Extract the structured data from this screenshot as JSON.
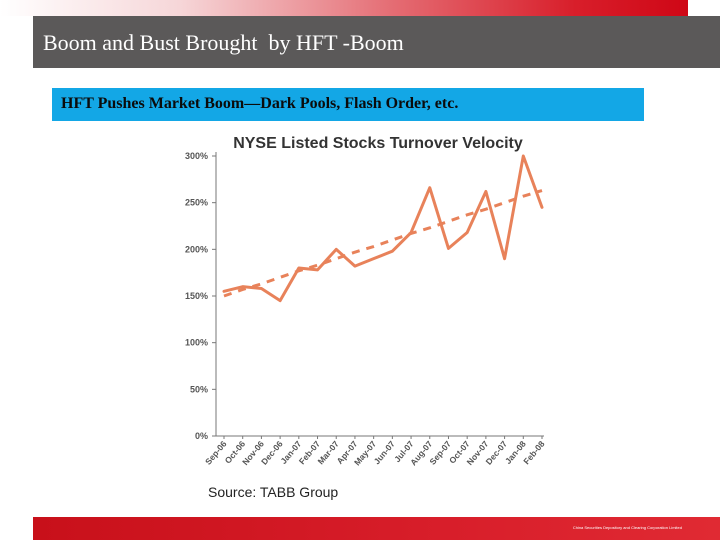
{
  "slide": {
    "title": "Boom and Bust Brought  by HFT -Boom",
    "subtitle": "HFT Pushes Market Boom—Dark Pools, Flash Order, etc.",
    "source": "Source: TABB Group",
    "footer": "China Securities Depository and Clearing Corporation Limited"
  },
  "colors": {
    "title_bar": "#5b5959",
    "subtitle_box": "#13a7e6",
    "series_line": "#e8825a",
    "trend_line": "#e8825a",
    "footer_bar": "#d81e2a"
  },
  "chart_data": {
    "type": "line",
    "title": "NYSE Listed Stocks Turnover Velocity",
    "xlabel": "",
    "ylabel": "",
    "categories": [
      "Sep-06",
      "Oct-06",
      "Nov-06",
      "Dec-06",
      "Jan-07",
      "Feb-07",
      "Mar-07",
      "Apr-07",
      "May-07",
      "Jun-07",
      "Jul-07",
      "Aug-07",
      "Sep-07",
      "Oct-07",
      "Nov-07",
      "Dec-07",
      "Jan-08",
      "Feb-08"
    ],
    "series": [
      {
        "values": [
          155,
          160,
          158,
          145,
          180,
          178,
          200,
          182,
          190,
          198,
          218,
          266,
          201,
          218,
          262,
          190,
          300,
          245
        ]
      },
      {
        "style": "dashed-trend",
        "values": [
          150,
          157,
          163,
          170,
          177,
          183,
          190,
          197,
          203,
          210,
          217,
          223,
          230,
          237,
          243,
          250,
          257,
          263
        ]
      }
    ],
    "ylim": [
      0,
      300
    ],
    "yticks": [
      "0%",
      "50%",
      "100%",
      "150%",
      "200%",
      "250%",
      "300%"
    ],
    "grid": false,
    "legend": "none"
  }
}
